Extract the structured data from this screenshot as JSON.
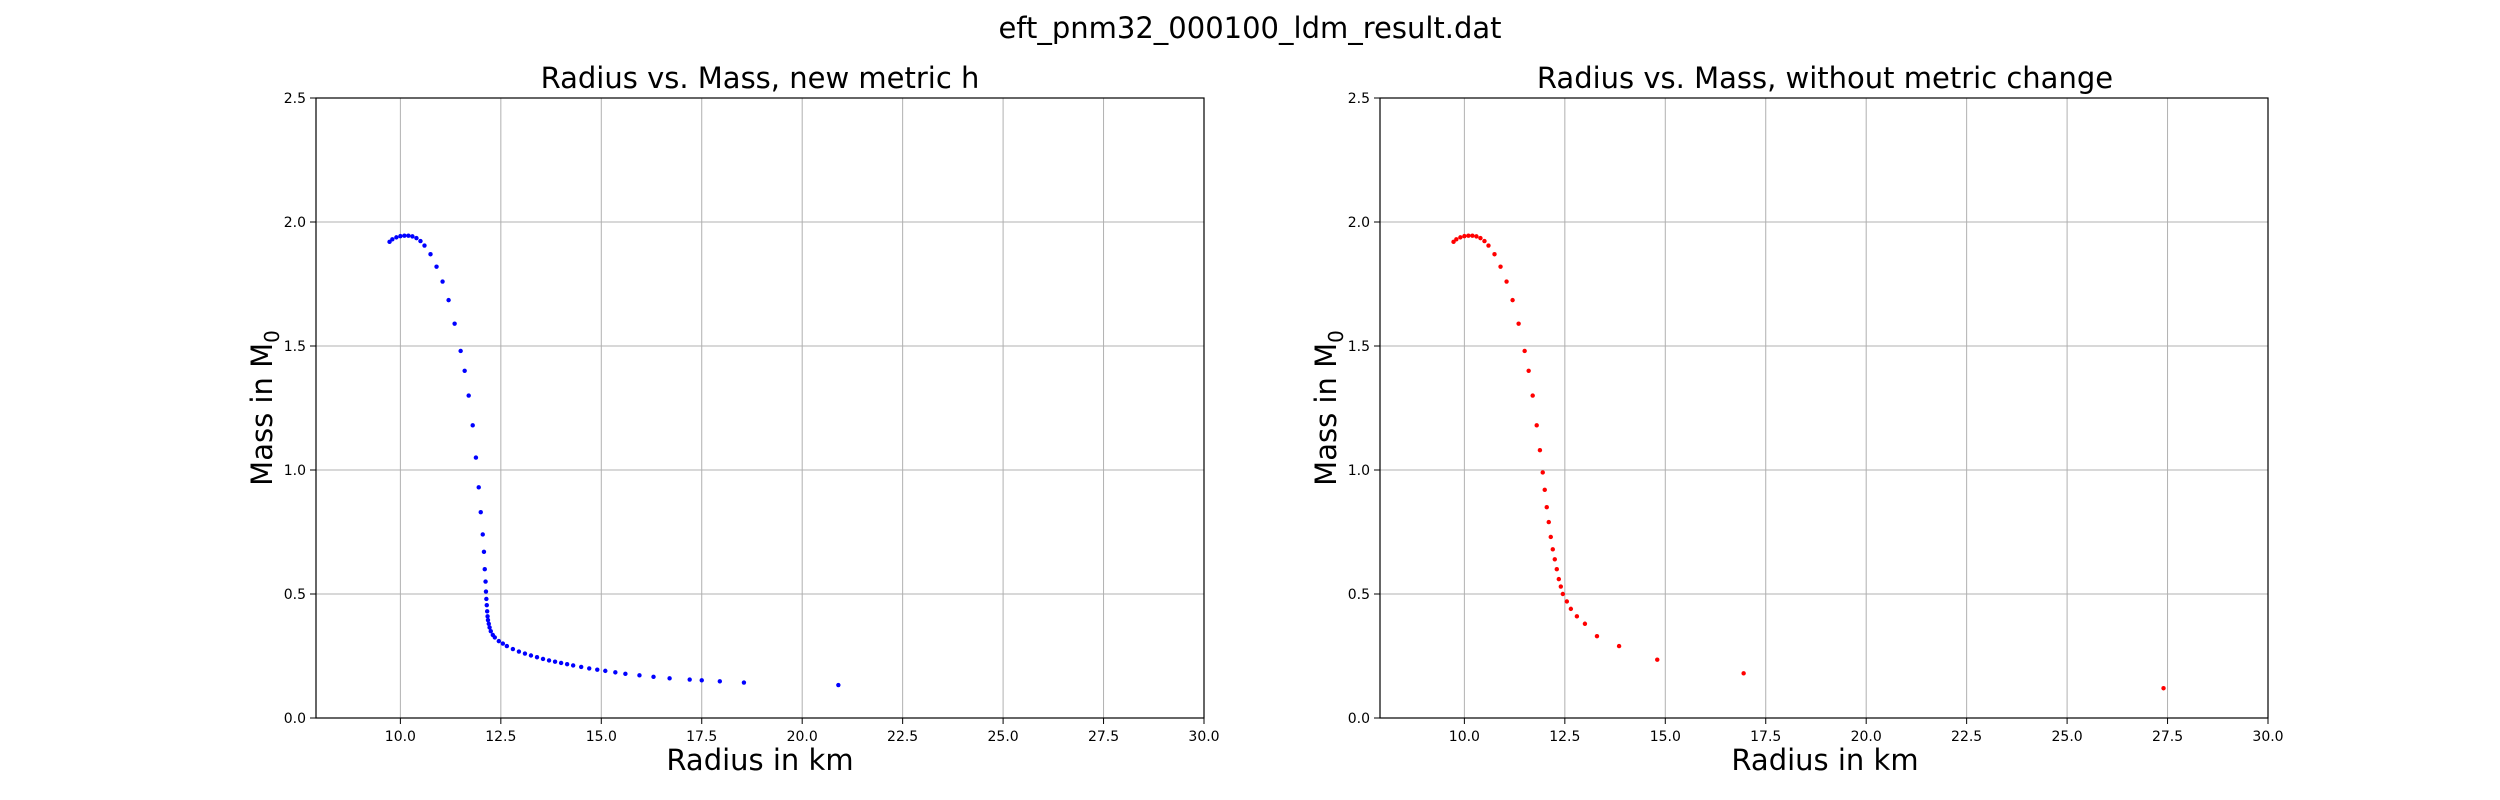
{
  "figure": {
    "suptitle": "eft_pnm32_000100_ldm_result.dat"
  },
  "chart_data": [
    {
      "type": "scatter",
      "title": "Radius vs. Mass, new metric h",
      "xlabel": "Radius in km",
      "ylabel": "Mass in M",
      "ylabel_subscript": "0",
      "xlim": [
        7.9,
        30.0
      ],
      "ylim": [
        0.0,
        2.5
      ],
      "xticks": [
        "10.0",
        "12.5",
        "15.0",
        "17.5",
        "20.0",
        "22.5",
        "25.0",
        "27.5",
        "30.0"
      ],
      "yticks": [
        "0.0",
        "0.5",
        "1.0",
        "1.5",
        "2.0",
        "2.5"
      ],
      "grid": true,
      "color": "#0000ff",
      "series": [
        {
          "x": [
            9.73,
            9.8,
            9.9,
            10.0,
            10.1,
            10.2,
            10.3,
            10.4,
            10.5,
            10.6,
            10.75,
            10.9,
            11.05,
            11.2,
            11.35,
            11.5,
            11.6,
            11.7,
            11.8,
            11.88,
            11.95,
            12.0,
            12.05,
            12.08,
            12.1,
            12.12,
            12.13,
            12.14,
            12.15,
            12.16,
            12.17,
            12.18,
            12.2,
            12.22,
            12.25,
            12.3,
            12.35,
            12.45,
            12.55,
            12.65,
            12.8,
            12.95,
            13.1,
            13.25,
            13.4,
            13.55,
            13.7,
            13.85,
            14.0,
            14.15,
            14.3,
            14.5,
            14.7,
            14.9,
            15.1,
            15.35,
            15.6,
            15.95,
            16.3,
            16.7,
            17.2,
            17.5,
            17.95,
            18.55,
            20.9
          ],
          "y": [
            1.92,
            1.93,
            1.938,
            1.943,
            1.945,
            1.945,
            1.942,
            1.935,
            1.923,
            1.905,
            1.87,
            1.82,
            1.76,
            1.685,
            1.59,
            1.48,
            1.4,
            1.3,
            1.18,
            1.05,
            0.93,
            0.83,
            0.74,
            0.67,
            0.6,
            0.55,
            0.51,
            0.48,
            0.455,
            0.43,
            0.41,
            0.395,
            0.38,
            0.365,
            0.35,
            0.335,
            0.325,
            0.31,
            0.3,
            0.29,
            0.278,
            0.268,
            0.26,
            0.252,
            0.245,
            0.238,
            0.232,
            0.227,
            0.222,
            0.217,
            0.212,
            0.206,
            0.2,
            0.195,
            0.19,
            0.184,
            0.178,
            0.172,
            0.166,
            0.16,
            0.155,
            0.152,
            0.148,
            0.143,
            0.133
          ]
        }
      ]
    },
    {
      "type": "scatter",
      "title": "Radius vs. Mass, without metric change",
      "xlabel": "Radius in km",
      "ylabel": "Mass in M",
      "ylabel_subscript": "0",
      "xlim": [
        7.9,
        30.0
      ],
      "ylim": [
        0.0,
        2.5
      ],
      "xticks": [
        "10.0",
        "12.5",
        "15.0",
        "17.5",
        "20.0",
        "22.5",
        "25.0",
        "27.5",
        "30.0"
      ],
      "yticks": [
        "0.0",
        "0.5",
        "1.0",
        "1.5",
        "2.0",
        "2.5"
      ],
      "grid": true,
      "color": "#ff0000",
      "series": [
        {
          "x": [
            9.73,
            9.8,
            9.9,
            10.0,
            10.1,
            10.2,
            10.3,
            10.4,
            10.5,
            10.6,
            10.75,
            10.9,
            11.05,
            11.2,
            11.35,
            11.5,
            11.6,
            11.7,
            11.8,
            11.88,
            11.95,
            12.0,
            12.05,
            12.1,
            12.15,
            12.2,
            12.25,
            12.3,
            12.35,
            12.4,
            12.45,
            12.55,
            12.65,
            12.8,
            13.0,
            13.3,
            13.85,
            14.8,
            16.95,
            27.4
          ],
          "y": [
            1.92,
            1.93,
            1.938,
            1.943,
            1.945,
            1.945,
            1.942,
            1.935,
            1.923,
            1.905,
            1.87,
            1.82,
            1.76,
            1.685,
            1.59,
            1.48,
            1.4,
            1.3,
            1.18,
            1.08,
            0.99,
            0.92,
            0.85,
            0.79,
            0.73,
            0.68,
            0.64,
            0.6,
            0.56,
            0.53,
            0.5,
            0.47,
            0.44,
            0.41,
            0.38,
            0.33,
            0.29,
            0.235,
            0.18,
            0.12
          ]
        }
      ]
    }
  ]
}
